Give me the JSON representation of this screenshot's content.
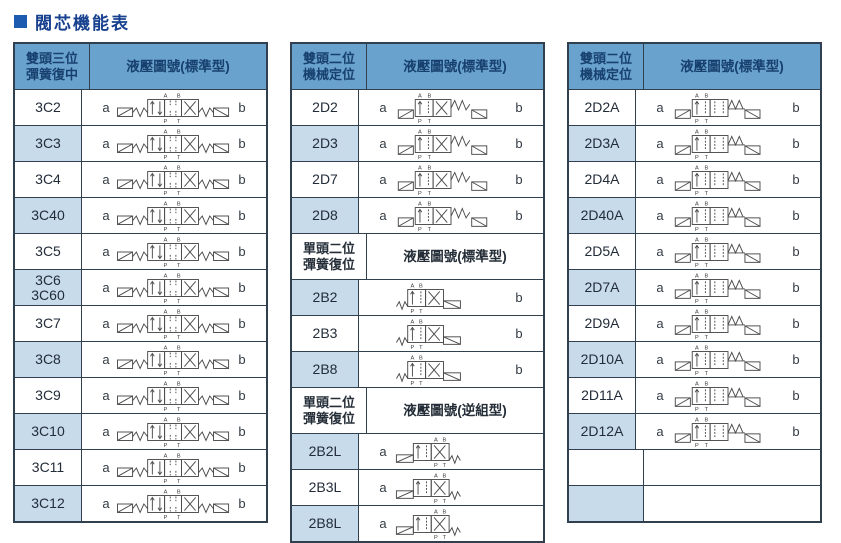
{
  "title": "閥芯機能表",
  "colors": {
    "header_bg": "#69a2cd",
    "header_text": "#17406e",
    "row_alt_bg": "#c8dbeb",
    "border": "#31404f",
    "title_text": "#17408f",
    "title_bullet": "#1d5bb0"
  },
  "diagram_port_labels": {
    "top": "A B",
    "bottom": "P T"
  },
  "tables": [
    {
      "name": "table-3c-double-head-3pos",
      "sections": [
        {
          "header": {
            "left": [
              "雙頭三位",
              "彈簧復中"
            ],
            "right": "液壓圖號(標準型)",
            "style": "blue"
          },
          "rows": [
            {
              "code": [
                "3C2"
              ],
              "a": "a",
              "b": "b",
              "diagram": "valve3",
              "shade": false
            },
            {
              "code": [
                "3C3"
              ],
              "a": "a",
              "b": "b",
              "diagram": "valve3",
              "shade": true
            },
            {
              "code": [
                "3C4"
              ],
              "a": "a",
              "b": "b",
              "diagram": "valve3",
              "shade": false
            },
            {
              "code": [
                "3C40"
              ],
              "a": "a",
              "b": "b",
              "diagram": "valve3",
              "shade": true
            },
            {
              "code": [
                "3C5"
              ],
              "a": "a",
              "b": "b",
              "diagram": "valve3",
              "shade": false
            },
            {
              "code": [
                "3C6",
                "3C60"
              ],
              "a": "a",
              "b": "b",
              "diagram": "valve3",
              "shade": true
            },
            {
              "code": [
                "3C7"
              ],
              "a": "a",
              "b": "b",
              "diagram": "valve3",
              "shade": false
            },
            {
              "code": [
                "3C8"
              ],
              "a": "a",
              "b": "b",
              "diagram": "valve3",
              "shade": true
            },
            {
              "code": [
                "3C9"
              ],
              "a": "a",
              "b": "b",
              "diagram": "valve3",
              "shade": false
            },
            {
              "code": [
                "3C10"
              ],
              "a": "a",
              "b": "b",
              "diagram": "valve3",
              "shade": true
            },
            {
              "code": [
                "3C11"
              ],
              "a": "a",
              "b": "b",
              "diagram": "valve3",
              "shade": false
            },
            {
              "code": [
                "3C12"
              ],
              "a": "a",
              "b": "b",
              "diagram": "valve3",
              "shade": true
            }
          ]
        }
      ]
    },
    {
      "name": "table-2d-2b-middle",
      "sections": [
        {
          "header": {
            "left": [
              "雙頭二位",
              "機械定位"
            ],
            "right": "液壓圖號(標準型)",
            "style": "blue"
          },
          "rows": [
            {
              "code": [
                "2D2"
              ],
              "a": "a",
              "b": "b",
              "diagram": "valve2d",
              "shade": false
            },
            {
              "code": [
                "2D3"
              ],
              "a": "a",
              "b": "b",
              "diagram": "valve2d",
              "shade": true
            },
            {
              "code": [
                "2D7"
              ],
              "a": "a",
              "b": "b",
              "diagram": "valve2d",
              "shade": false
            },
            {
              "code": [
                "2D8"
              ],
              "a": "a",
              "b": "b",
              "diagram": "valve2d",
              "shade": true
            }
          ]
        },
        {
          "header": {
            "left": [
              "單頭二位",
              "彈簧復位"
            ],
            "right": "液壓圖號(標準型)",
            "style": "white"
          },
          "rows": [
            {
              "code": [
                "2B2"
              ],
              "a": "",
              "b": "b",
              "diagram": "valve2b",
              "shade": true
            },
            {
              "code": [
                "2B3"
              ],
              "a": "",
              "b": "b",
              "diagram": "valve2b",
              "shade": false
            },
            {
              "code": [
                "2B8"
              ],
              "a": "",
              "b": "b",
              "diagram": "valve2b",
              "shade": true
            }
          ]
        },
        {
          "header": {
            "left": [
              "單頭二位",
              "彈簧復位"
            ],
            "right": "液壓圖號(逆組型)",
            "style": "white"
          },
          "rows": [
            {
              "code": [
                "2B2L"
              ],
              "a": "a",
              "b": "",
              "diagram": "valve2bl",
              "shade": true
            },
            {
              "code": [
                "2B3L"
              ],
              "a": "a",
              "b": "",
              "diagram": "valve2bl",
              "shade": false
            },
            {
              "code": [
                "2B8L"
              ],
              "a": "a",
              "b": "",
              "diagram": "valve2bl",
              "shade": true
            }
          ]
        }
      ]
    },
    {
      "name": "table-2da-double-head-2pos",
      "sections": [
        {
          "header": {
            "left": [
              "雙頭二位",
              "機械定位"
            ],
            "right": "液壓圖號(標準型)",
            "style": "blue"
          },
          "rows": [
            {
              "code": [
                "2D2A"
              ],
              "a": "a",
              "b": "b",
              "diagram": "valve2da",
              "shade": false
            },
            {
              "code": [
                "2D3A"
              ],
              "a": "a",
              "b": "b",
              "diagram": "valve2da",
              "shade": true
            },
            {
              "code": [
                "2D4A"
              ],
              "a": "a",
              "b": "b",
              "diagram": "valve2da",
              "shade": false
            },
            {
              "code": [
                "2D40A"
              ],
              "a": "a",
              "b": "b",
              "diagram": "valve2da",
              "shade": true
            },
            {
              "code": [
                "2D5A"
              ],
              "a": "a",
              "b": "b",
              "diagram": "valve2da",
              "shade": false
            },
            {
              "code": [
                "2D7A"
              ],
              "a": "a",
              "b": "b",
              "diagram": "valve2da",
              "shade": true
            },
            {
              "code": [
                "2D9A"
              ],
              "a": "a",
              "b": "b",
              "diagram": "valve2da",
              "shade": false
            },
            {
              "code": [
                "2D10A"
              ],
              "a": "a",
              "b": "b",
              "diagram": "valve2da",
              "shade": true
            },
            {
              "code": [
                "2D11A"
              ],
              "a": "a",
              "b": "b",
              "diagram": "valve2da",
              "shade": false
            },
            {
              "code": [
                "2D12A"
              ],
              "a": "a",
              "b": "b",
              "diagram": "valve2da",
              "shade": true
            },
            {
              "code": [],
              "a": "",
              "b": "",
              "diagram": "",
              "shade": false
            },
            {
              "code": [],
              "a": "",
              "b": "",
              "diagram": "",
              "shade": true
            }
          ]
        }
      ]
    }
  ]
}
